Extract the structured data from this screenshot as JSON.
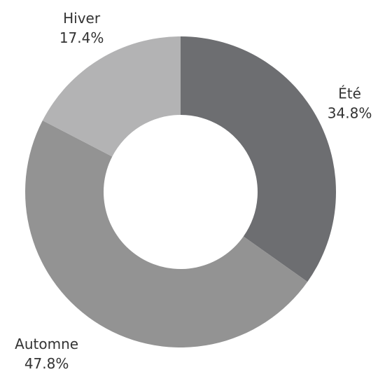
{
  "chart_data": {
    "type": "donut",
    "categories": [
      "Été",
      "Automne",
      "Hiver"
    ],
    "values": [
      34.8,
      47.8,
      17.4
    ],
    "value_labels": [
      "34.8%",
      "47.8%",
      "17.4%"
    ],
    "colors": [
      "#6d6e71",
      "#939393",
      "#b3b3b4"
    ]
  }
}
